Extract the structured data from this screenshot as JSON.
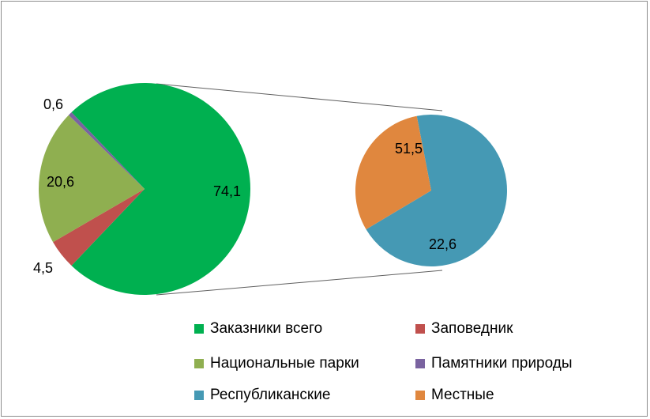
{
  "chart_data": {
    "type": "pie",
    "subtype": "pie-of-pie",
    "main_pie": {
      "slices": [
        {
          "name": "Заказники всего",
          "value": 74.1,
          "label": "74,1",
          "color": "#00b050"
        },
        {
          "name": "Заповедник",
          "value": 4.5,
          "label": "4,5",
          "color": "#c0504d"
        },
        {
          "name": "Национальные парки",
          "value": 20.6,
          "label": "20,6",
          "color": "#8faf50"
        },
        {
          "name": "Памятники природы",
          "value": 0.6,
          "label": "0,6",
          "color": "#7a63a0"
        }
      ]
    },
    "secondary_pie": {
      "expands": "Заказники всего",
      "slices": [
        {
          "name": "Республиканские",
          "value": 51.5,
          "label": "51,5",
          "color": "#4599b4"
        },
        {
          "name": "Местные",
          "value": 22.6,
          "label": "22,6",
          "color": "#e0873e"
        }
      ]
    },
    "legend": {
      "placement": "bottom",
      "items": [
        {
          "name": "Заказники всего",
          "color": "#00b050"
        },
        {
          "name": "Заповедник",
          "color": "#c0504d"
        },
        {
          "name": "Национальные парки",
          "color": "#8faf50"
        },
        {
          "name": "Памятники природы",
          "color": "#7a63a0"
        },
        {
          "name": "Республиканские",
          "color": "#4599b4"
        },
        {
          "name": "Местные",
          "color": "#e0873e"
        }
      ]
    }
  }
}
